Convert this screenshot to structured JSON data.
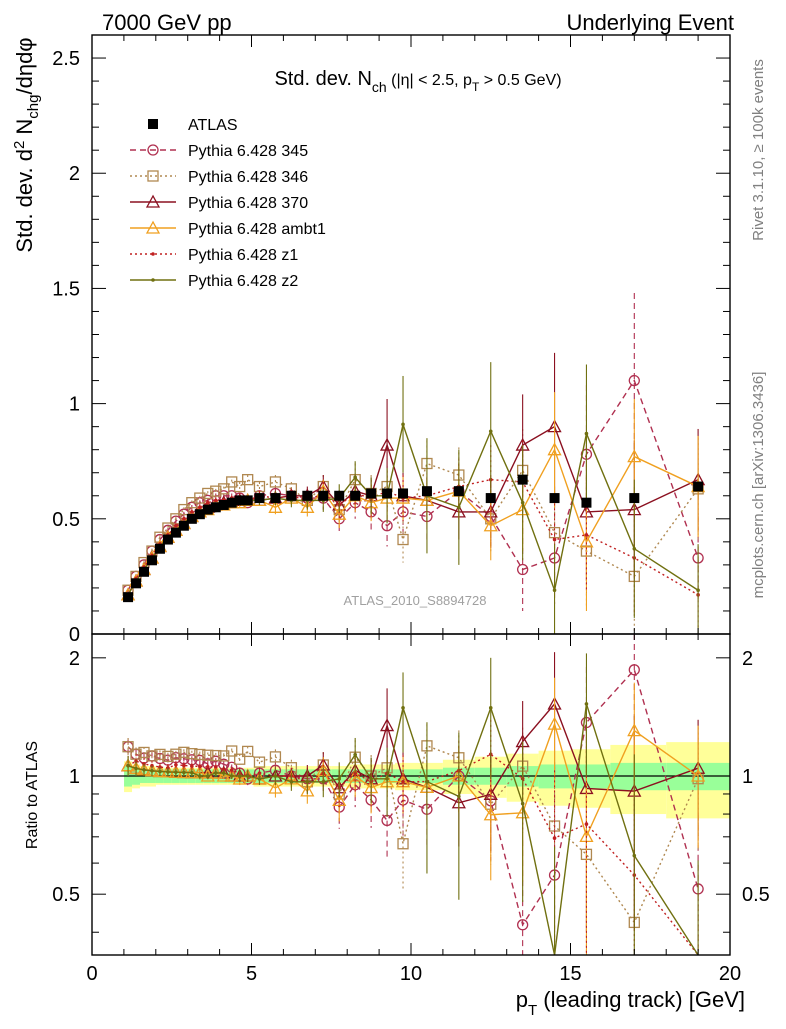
{
  "header": {
    "left": "7000 GeV pp",
    "right": "Underlying Event"
  },
  "side_labels": {
    "rivet": "Rivet 3.1.10, ≥ 100k events",
    "mcplots": "mcplots.cern.ch [arXiv:1306.3436]"
  },
  "watermark": "ATLAS_2010_S8894728",
  "chart_data": {
    "type": "line",
    "title_parts": {
      "main": "Std. dev. N",
      "sub": "ch",
      "rest": " (|η| < 2.5, p",
      "sub2": "T",
      "end": " > 0.5 GeV)"
    },
    "ylabel_main": {
      "pre": "Std. dev. d",
      "sup": "2",
      "mid": " N",
      "sub": "chg",
      "post": "/dηdφ"
    },
    "ylabel_ratio": "Ratio to ATLAS",
    "xlabel": {
      "pre": "p",
      "sub": "T",
      "post": " (leading track) [GeV]"
    },
    "xlim": [
      0,
      20
    ],
    "ylim_main": [
      0,
      2.6
    ],
    "ylim_ratio": [
      0.35,
      2.3
    ],
    "x_ticks": [
      "0",
      "5",
      "10",
      "15",
      "20"
    ],
    "y_ticks_main": [
      "0",
      "0.5",
      "1",
      "1.5",
      "2",
      "2.5"
    ],
    "y_ticks_ratio": [
      "0.5",
      "1",
      "2"
    ],
    "x": [
      1.13,
      1.38,
      1.63,
      1.88,
      2.13,
      2.38,
      2.63,
      2.88,
      3.13,
      3.38,
      3.63,
      3.88,
      4.13,
      4.38,
      4.63,
      4.88,
      5.25,
      5.75,
      6.25,
      6.75,
      7.25,
      7.75,
      8.25,
      8.75,
      9.25,
      9.75,
      10.5,
      11.5,
      12.5,
      13.5,
      14.5,
      15.5,
      17,
      19
    ],
    "data": {
      "name": "ATLAS",
      "values": [
        0.16,
        0.22,
        0.27,
        0.32,
        0.37,
        0.41,
        0.44,
        0.47,
        0.5,
        0.52,
        0.54,
        0.55,
        0.56,
        0.57,
        0.58,
        0.58,
        0.59,
        0.59,
        0.6,
        0.6,
        0.6,
        0.6,
        0.6,
        0.61,
        0.61,
        0.61,
        0.62,
        0.62,
        0.59,
        0.67,
        0.59,
        0.57,
        0.59,
        0.64
      ],
      "band_inner": [
        0.06,
        0.05,
        0.04,
        0.04,
        0.04,
        0.04,
        0.04,
        0.04,
        0.04,
        0.04,
        0.04,
        0.04,
        0.04,
        0.04,
        0.04,
        0.04,
        0.04,
        0.04,
        0.04,
        0.04,
        0.04,
        0.04,
        0.04,
        0.04,
        0.04,
        0.04,
        0.04,
        0.05,
        0.05,
        0.06,
        0.07,
        0.07,
        0.08,
        0.08
      ],
      "band_outer": [
        0.09,
        0.07,
        0.06,
        0.06,
        0.05,
        0.05,
        0.05,
        0.05,
        0.05,
        0.05,
        0.05,
        0.05,
        0.05,
        0.05,
        0.05,
        0.05,
        0.06,
        0.06,
        0.06,
        0.06,
        0.06,
        0.06,
        0.07,
        0.07,
        0.07,
        0.08,
        0.08,
        0.1,
        0.12,
        0.14,
        0.16,
        0.17,
        0.2,
        0.22
      ]
    },
    "series": [
      {
        "name": "Pythia 6.428 345",
        "color": "#b03050",
        "marker": "circle",
        "dash": "dashed",
        "values": [
          0.19,
          0.25,
          0.3,
          0.36,
          0.41,
          0.45,
          0.49,
          0.52,
          0.55,
          0.57,
          0.58,
          0.6,
          0.6,
          0.6,
          0.59,
          0.57,
          0.6,
          0.61,
          0.6,
          0.59,
          0.59,
          0.5,
          0.57,
          0.53,
          0.47,
          0.53,
          0.51,
          0.62,
          0.51,
          0.28,
          0.33,
          0.78,
          1.1,
          0.33
        ],
        "errors": [
          0.01,
          0.01,
          0.01,
          0.01,
          0.01,
          0.01,
          0.01,
          0.01,
          0.01,
          0.01,
          0.01,
          0.01,
          0.01,
          0.01,
          0.01,
          0.02,
          0.02,
          0.03,
          0.03,
          0.04,
          0.05,
          0.06,
          0.07,
          0.08,
          0.09,
          0.1,
          0.1,
          0.12,
          0.15,
          0.18,
          0.2,
          0.3,
          0.38,
          0.18
        ]
      },
      {
        "name": "Pythia 6.428 346",
        "color": "#b08850",
        "marker": "square",
        "dash": "dotted",
        "values": [
          0.19,
          0.25,
          0.31,
          0.36,
          0.42,
          0.46,
          0.5,
          0.54,
          0.57,
          0.59,
          0.61,
          0.62,
          0.63,
          0.66,
          0.64,
          0.67,
          0.64,
          0.66,
          0.63,
          0.58,
          0.64,
          0.54,
          0.67,
          0.61,
          0.64,
          0.41,
          0.74,
          0.69,
          0.5,
          0.71,
          0.44,
          0.36,
          0.25,
          0.63
        ],
        "errors": [
          0.01,
          0.01,
          0.01,
          0.01,
          0.01,
          0.01,
          0.01,
          0.01,
          0.01,
          0.01,
          0.01,
          0.01,
          0.01,
          0.01,
          0.02,
          0.02,
          0.02,
          0.03,
          0.03,
          0.04,
          0.05,
          0.06,
          0.07,
          0.08,
          0.09,
          0.1,
          0.1,
          0.12,
          0.15,
          0.18,
          0.2,
          0.25,
          0.25,
          0.22
        ]
      },
      {
        "name": "Pythia 6.428 370",
        "color": "#8b1020",
        "marker": "triangle",
        "dash": "solid",
        "values": [
          0.17,
          0.23,
          0.28,
          0.33,
          0.38,
          0.42,
          0.45,
          0.48,
          0.51,
          0.53,
          0.55,
          0.56,
          0.57,
          0.57,
          0.58,
          0.58,
          0.58,
          0.59,
          0.6,
          0.6,
          0.64,
          0.56,
          0.62,
          0.6,
          0.82,
          0.6,
          0.58,
          0.53,
          0.53,
          0.82,
          0.9,
          0.53,
          0.54,
          0.67
        ],
        "errors": [
          0.01,
          0.01,
          0.01,
          0.01,
          0.01,
          0.01,
          0.01,
          0.01,
          0.01,
          0.01,
          0.01,
          0.01,
          0.01,
          0.01,
          0.02,
          0.02,
          0.02,
          0.03,
          0.03,
          0.04,
          0.05,
          0.06,
          0.07,
          0.08,
          0.2,
          0.1,
          0.1,
          0.12,
          0.15,
          0.22,
          0.32,
          0.3,
          0.3,
          0.22
        ]
      },
      {
        "name": "Pythia 6.428 ambt1",
        "color": "#f0a020",
        "marker": "triangle",
        "dash": "solid",
        "values": [
          0.17,
          0.23,
          0.28,
          0.33,
          0.38,
          0.42,
          0.45,
          0.48,
          0.51,
          0.53,
          0.54,
          0.56,
          0.56,
          0.57,
          0.57,
          0.58,
          0.58,
          0.55,
          0.59,
          0.55,
          0.62,
          0.52,
          0.6,
          0.57,
          0.59,
          0.59,
          0.58,
          0.62,
          0.47,
          0.54,
          0.8,
          0.4,
          0.77,
          0.64
        ],
        "errors": [
          0.01,
          0.01,
          0.01,
          0.01,
          0.01,
          0.01,
          0.01,
          0.01,
          0.01,
          0.01,
          0.01,
          0.01,
          0.01,
          0.01,
          0.02,
          0.02,
          0.02,
          0.03,
          0.03,
          0.04,
          0.05,
          0.06,
          0.07,
          0.08,
          0.09,
          0.1,
          0.1,
          0.12,
          0.15,
          0.18,
          0.25,
          0.3,
          0.25,
          0.22
        ]
      },
      {
        "name": "Pythia 6.428 z1",
        "color": "#c02020",
        "marker": "dot",
        "dash": "dotted",
        "values": [
          0.17,
          0.24,
          0.29,
          0.34,
          0.39,
          0.43,
          0.47,
          0.5,
          0.53,
          0.55,
          0.57,
          0.58,
          0.58,
          0.59,
          0.59,
          0.58,
          0.6,
          0.59,
          0.6,
          0.58,
          0.61,
          0.56,
          0.61,
          0.59,
          0.62,
          0.59,
          0.6,
          0.64,
          0.67,
          0.66,
          0.41,
          0.43,
          0.33,
          0.17
        ],
        "errors": [
          0.01,
          0.01,
          0.01,
          0.01,
          0.01,
          0.01,
          0.01,
          0.01,
          0.01,
          0.01,
          0.01,
          0.01,
          0.01,
          0.01,
          0.02,
          0.02,
          0.02,
          0.03,
          0.03,
          0.04,
          0.05,
          0.06,
          0.07,
          0.08,
          0.09,
          0.1,
          0.1,
          0.12,
          0.15,
          0.18,
          0.2,
          0.25,
          0.25,
          0.15
        ]
      },
      {
        "name": "Pythia 6.428 z2",
        "color": "#707010",
        "marker": "dot",
        "dash": "solid",
        "values": [
          0.17,
          0.23,
          0.28,
          0.33,
          0.38,
          0.42,
          0.45,
          0.48,
          0.51,
          0.52,
          0.54,
          0.56,
          0.57,
          0.57,
          0.58,
          0.58,
          0.58,
          0.59,
          0.58,
          0.58,
          0.58,
          0.59,
          0.68,
          0.6,
          0.6,
          0.91,
          0.6,
          0.55,
          0.88,
          0.57,
          0.19,
          0.87,
          0.37,
          0.19
        ],
        "errors": [
          0.01,
          0.01,
          0.01,
          0.01,
          0.01,
          0.01,
          0.01,
          0.01,
          0.01,
          0.01,
          0.01,
          0.01,
          0.01,
          0.01,
          0.02,
          0.02,
          0.02,
          0.03,
          0.03,
          0.04,
          0.05,
          0.06,
          0.07,
          0.08,
          0.12,
          0.21,
          0.25,
          0.25,
          0.3,
          0.25,
          0.2,
          0.3,
          0.3,
          0.2
        ]
      }
    ],
    "legend_position": "top-left"
  }
}
